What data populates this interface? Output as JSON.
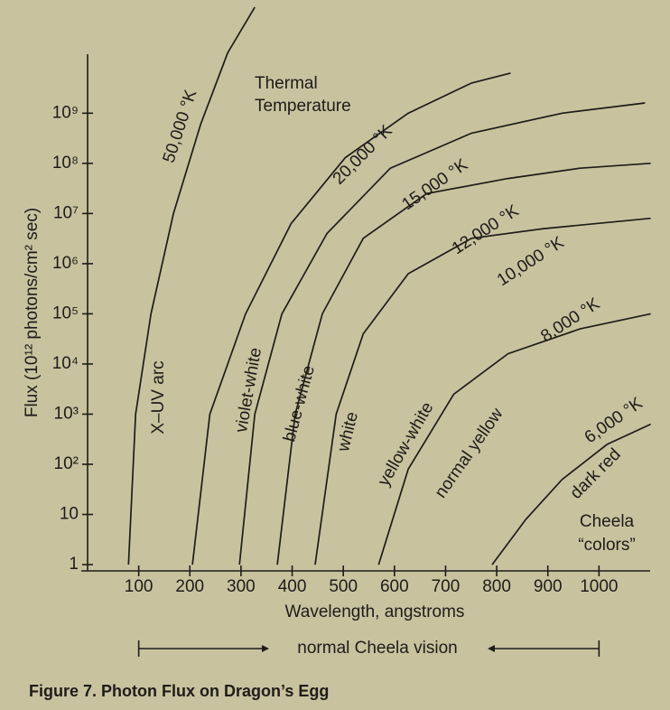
{
  "chart_data": {
    "type": "line",
    "title": [
      "Thermal",
      "Temperature"
    ],
    "caption": "Figure 7. Photon Flux on Dragon’s Egg",
    "x_label": "Wavelength, angstroms",
    "y_label": "Flux (10¹² photons/cm² sec)",
    "log_y": true,
    "xlim": [
      0,
      1100
    ],
    "ylim": [
      0.75,
      15000000000
    ],
    "xticks": [
      100,
      200,
      300,
      400,
      500,
      600,
      700,
      800,
      900,
      1000
    ],
    "yticks": [
      1,
      10,
      {
        "value": 100,
        "label": "10²"
      },
      {
        "value": 1000,
        "label": "10³"
      },
      {
        "value": 10000,
        "label": "10⁴"
      },
      {
        "value": 100000,
        "label": "10⁵"
      },
      {
        "value": 1000000,
        "label": "10⁶"
      },
      {
        "value": 10000000,
        "label": "10⁷"
      },
      {
        "value": 100000000,
        "label": "10⁸"
      },
      {
        "value": 1000000000,
        "label": "10⁹"
      }
    ],
    "color": "#1e1c18",
    "series": [
      {
        "name": "50,000 °K",
        "band": "X–UV arc",
        "x": [
          80,
          94,
          124,
          168,
          221,
          274,
          327
        ],
        "values": [
          1,
          1000,
          100000,
          10000000,
          600000000,
          16000000000,
          130000000000
        ]
      },
      {
        "name": "20,000 °K",
        "band": "violet-white",
        "x": [
          205,
          239,
          309,
          398,
          504,
          627,
          751,
          827
        ],
        "values": [
          1,
          1000,
          100000,
          6300000,
          130000000,
          1000000000,
          4000000000,
          6300000000
        ]
      },
      {
        "name": "15,000 °K",
        "band": "blue-white",
        "x": [
          297,
          327,
          380,
          468,
          592,
          751,
          928,
          1090
        ],
        "values": [
          1,
          1000,
          100000,
          4000000,
          80000000,
          400000000,
          1000000000,
          1600000000
        ]
      },
      {
        "name": "12,000 °K",
        "band": "white",
        "x": [
          371,
          406,
          459,
          539,
          663,
          822,
          963,
          1101
        ],
        "values": [
          1,
          1000,
          100000,
          3200000,
          25000000,
          50000000,
          80000000,
          100000000
        ]
      },
      {
        "name": "10,000 °K",
        "band": "yellow-white",
        "x": [
          445,
          486,
          539,
          627,
          751,
          892,
          1101
        ],
        "values": [
          1,
          1000,
          40000,
          630000,
          3200000,
          5000000,
          8000000
        ]
      },
      {
        "name": "8,000 °K",
        "band": "normal yellow",
        "x": [
          569,
          627,
          716,
          822,
          963,
          1101
        ],
        "values": [
          1,
          80,
          2500,
          16000,
          50000,
          100000
        ]
      },
      {
        "name": "6,000 °K",
        "band": "dark red",
        "x": [
          791,
          857,
          928,
          1016,
          1101
        ],
        "values": [
          1,
          8,
          50,
          250,
          630
        ]
      }
    ],
    "note": [
      "Cheela",
      "“colors”"
    ],
    "vision_label": "normal Cheela vision",
    "vision_range": [
      100,
      1000
    ]
  }
}
